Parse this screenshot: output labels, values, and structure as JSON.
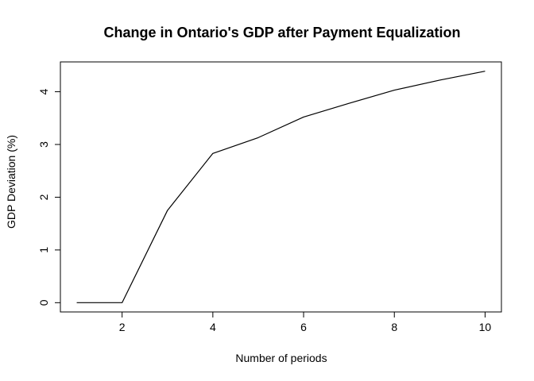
{
  "chart_data": {
    "type": "line",
    "title": "Change in Ontario's GDP after Payment Equalization",
    "xlabel": "Number of periods",
    "ylabel": "GDP Deviation (%)",
    "x": [
      1,
      2,
      3,
      4,
      5,
      6,
      7,
      8,
      9,
      10
    ],
    "series": [
      {
        "values": [
          0.0,
          0.0,
          1.75,
          2.83,
          3.13,
          3.52,
          3.78,
          4.03,
          4.22,
          4.39
        ]
      }
    ],
    "xticks": [
      2,
      4,
      6,
      8,
      10
    ],
    "yticks": [
      0,
      1,
      2,
      3,
      4
    ],
    "xlim": [
      0.64,
      10.36
    ],
    "ylim": [
      -0.1756,
      4.5656
    ],
    "grid": false,
    "legend": "none",
    "line_color": "#000000",
    "frame_color": "#000000"
  }
}
